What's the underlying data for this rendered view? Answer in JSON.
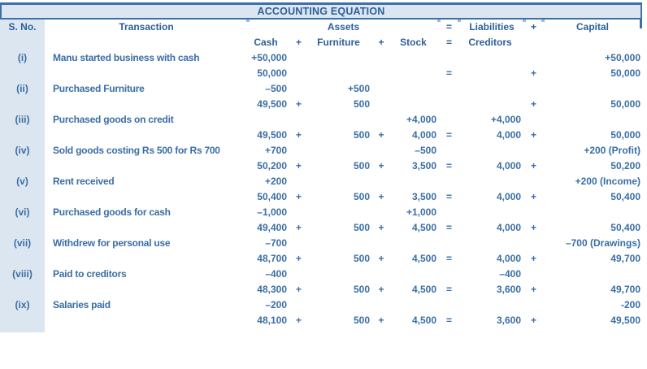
{
  "title": "ACCOUNTING EQUATION",
  "colors": {
    "text": "#3A6EA5",
    "header_text": "#2D5F99",
    "border": "#3E6FA6",
    "band_background": "#DCE6F1",
    "tick_light": "#9DB9DC"
  },
  "header": {
    "sno": "S. No.",
    "transaction": "Transaction",
    "assets_group": "Assets",
    "equals_sign": "=",
    "liabilities": "Liabilities",
    "plus_sign": "+",
    "capital": "Capital",
    "sub": {
      "cash": "Cash",
      "plus1": "+",
      "furniture": "Furniture",
      "plus2": "+",
      "stock": "Stock",
      "equals": "=",
      "creditors": "Creditors"
    }
  },
  "rows": [
    {
      "sno": "(i)",
      "transaction": "Manu started business with cash",
      "change": {
        "cash": "+50,000",
        "plus1": "",
        "furniture": "",
        "plus2": "",
        "stock": "",
        "eq": "",
        "creditors": "",
        "plus3": "",
        "capital": "+50,000"
      },
      "balance": {
        "cash": "50,000",
        "plus1": "",
        "furniture": "",
        "plus2": "",
        "stock": "",
        "eq": "=",
        "creditors": "",
        "plus3": "+",
        "capital": "50,000"
      }
    },
    {
      "sno": "(ii)",
      "transaction": "Purchased Furniture",
      "change": {
        "cash": "–500",
        "plus1": "",
        "furniture": "+500",
        "plus2": "",
        "stock": "",
        "eq": "",
        "creditors": "",
        "plus3": "",
        "capital": ""
      },
      "balance": {
        "cash": "49,500",
        "plus1": "+",
        "furniture": "500",
        "plus2": "",
        "stock": "",
        "eq": "",
        "creditors": "",
        "plus3": "+",
        "capital": "50,000"
      }
    },
    {
      "sno": "(iii)",
      "transaction": "Purchased goods on credit",
      "change": {
        "cash": "",
        "plus1": "",
        "furniture": "",
        "plus2": "",
        "stock": "+4,000",
        "eq": "",
        "creditors": "+4,000",
        "plus3": "",
        "capital": ""
      },
      "balance": {
        "cash": "49,500",
        "plus1": "+",
        "furniture": "500",
        "plus2": "+",
        "stock": "4,000",
        "eq": "=",
        "creditors": "4,000",
        "plus3": "+",
        "capital": "50,000"
      }
    },
    {
      "sno": "(iv)",
      "transaction": "Sold goods costing Rs 500 for Rs 700",
      "change": {
        "cash": "+700",
        "plus1": "",
        "furniture": "",
        "plus2": "",
        "stock": "–500",
        "eq": "",
        "creditors": "",
        "plus3": "",
        "capital": "+200 (Profit)"
      },
      "balance": {
        "cash": "50,200",
        "plus1": "+",
        "furniture": "500",
        "plus2": "+",
        "stock": "3,500",
        "eq": "=",
        "creditors": "4,000",
        "plus3": "+",
        "capital": "50,200"
      }
    },
    {
      "sno": "(v)",
      "transaction": "Rent received",
      "change": {
        "cash": "+200",
        "plus1": "",
        "furniture": "",
        "plus2": "",
        "stock": "",
        "eq": "",
        "creditors": "",
        "plus3": "",
        "capital": "+200 (Income)"
      },
      "balance": {
        "cash": "50,400",
        "plus1": "+",
        "furniture": "500",
        "plus2": "+",
        "stock": "3,500",
        "eq": "=",
        "creditors": "4,000",
        "plus3": "+",
        "capital": "50,400"
      }
    },
    {
      "sno": "(vi)",
      "transaction": "Purchased goods for cash",
      "change": {
        "cash": "–1,000",
        "plus1": "",
        "furniture": "",
        "plus2": "",
        "stock": "+1,000",
        "eq": "",
        "creditors": "",
        "plus3": "",
        "capital": ""
      },
      "balance": {
        "cash": "49,400",
        "plus1": "+",
        "furniture": "500",
        "plus2": "+",
        "stock": "4,500",
        "eq": "=",
        "creditors": "4,000",
        "plus3": "+",
        "capital": "50,400"
      }
    },
    {
      "sno": "(vii)",
      "transaction": "Withdrew for personal use",
      "change": {
        "cash": "–700",
        "plus1": "",
        "furniture": "",
        "plus2": "",
        "stock": "",
        "eq": "",
        "creditors": "",
        "plus3": "",
        "capital": "–700 (Drawings)"
      },
      "balance": {
        "cash": "48,700",
        "plus1": "+",
        "furniture": "500",
        "plus2": "+",
        "stock": "4,500",
        "eq": "=",
        "creditors": "4,000",
        "plus3": "+",
        "capital": "49,700"
      }
    },
    {
      "sno": "(viii)",
      "transaction": "Paid to creditors",
      "change": {
        "cash": "–400",
        "plus1": "",
        "furniture": "",
        "plus2": "",
        "stock": "",
        "eq": "",
        "creditors": "–400",
        "plus3": "",
        "capital": ""
      },
      "balance": {
        "cash": "48,300",
        "plus1": "+",
        "furniture": "500",
        "plus2": "+",
        "stock": "4,500",
        "eq": "=",
        "creditors": "3,600",
        "plus3": "+",
        "capital": "49,700"
      }
    },
    {
      "sno": "(ix)",
      "transaction": "Salaries paid",
      "change": {
        "cash": "–200",
        "plus1": "",
        "furniture": "",
        "plus2": "",
        "stock": "",
        "eq": "",
        "creditors": "",
        "plus3": "",
        "capital": "-200"
      },
      "balance": {
        "cash": "48,100",
        "plus1": "+",
        "furniture": "500",
        "plus2": "+",
        "stock": "4,500",
        "eq": "=",
        "creditors": "3,600",
        "plus3": "+",
        "capital": "49,500"
      }
    }
  ]
}
